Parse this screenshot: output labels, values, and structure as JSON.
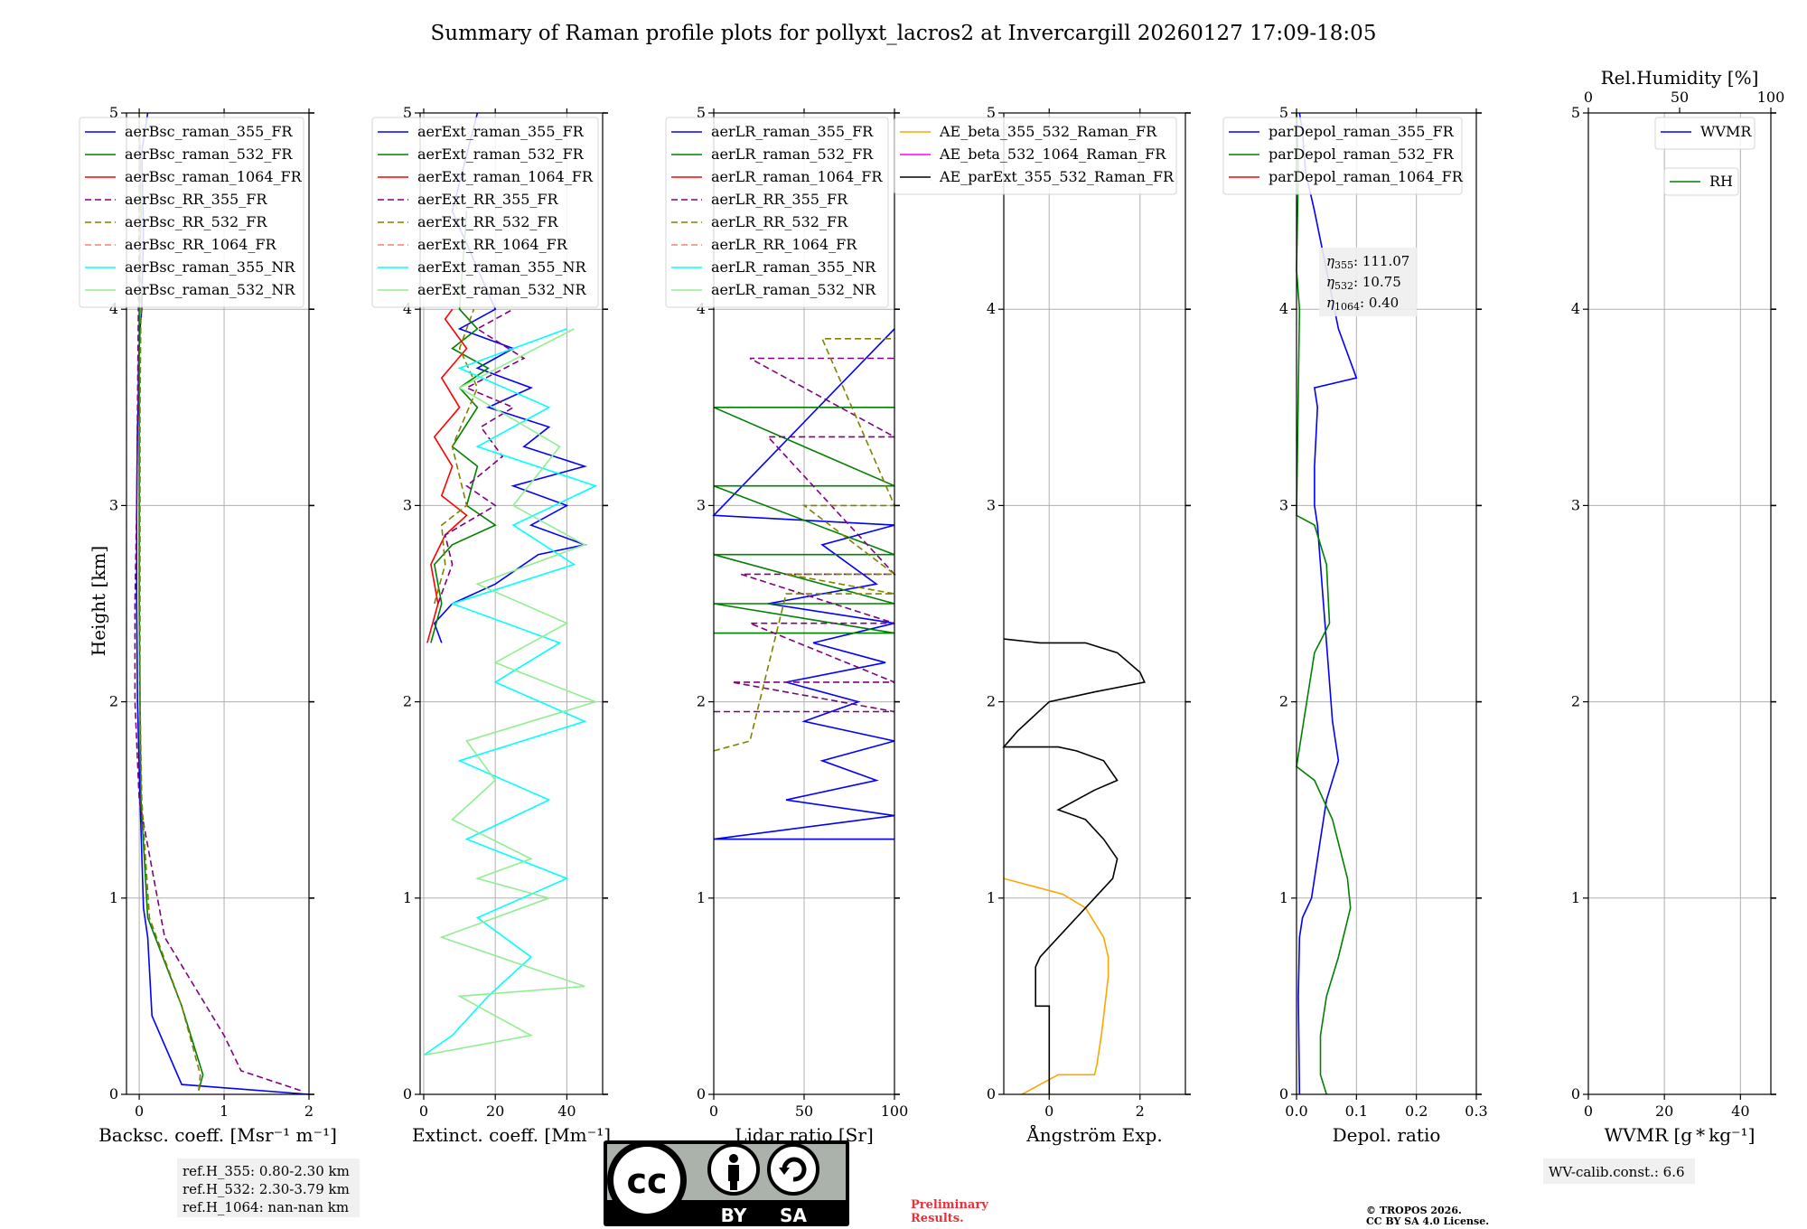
{
  "title": "Summary of Raman profile plots for pollyxt_lacros2 at Invercargill 20260127 17:09-18:05",
  "y_axis_label": "Height [km]",
  "colors": {
    "blue": "#0000ff",
    "green": "#008000",
    "red": "#ff0000",
    "purple": "#800080",
    "olive": "#808000",
    "salmon": "#fa8072",
    "cyan": "#00ffff",
    "lightgreen": "#90ee90",
    "orange": "#ffa500",
    "magenta": "#ff00ff",
    "black": "#000000",
    "grid": "#b0b0b0"
  },
  "chart_data": [
    {
      "type": "line",
      "id": "bsc",
      "xlabel": "Backsc. coeff. [Msr⁻¹ m⁻¹]",
      "xlim": [
        -0.15,
        2.0
      ],
      "ylim": [
        0,
        5
      ],
      "xticks": [
        0,
        1,
        2
      ],
      "xtick_labels": [
        "0",
        "1",
        "2"
      ],
      "yticks": [
        0,
        1,
        2,
        3,
        4,
        5
      ],
      "legend": [
        "aerBsc_raman_355_FR",
        "aerBsc_raman_532_FR",
        "aerBsc_raman_1064_FR",
        "aerBsc_RR_355_FR",
        "aerBsc_RR_532_FR",
        "aerBsc_RR_1064_FR",
        "aerBsc_raman_355_NR",
        "aerBsc_raman_532_NR"
      ],
      "series": [
        {
          "name": "aerBsc_raman_355_FR",
          "color": "blue",
          "style": "solid",
          "x": [
            2.0,
            0.5,
            0.15,
            0.1,
            0.05,
            0.01,
            -0.02,
            -0.03,
            -0.03,
            -0.02,
            -0.01,
            -0.01,
            0.0,
            0.01,
            0.03,
            0.05,
            0.03,
            0.1
          ],
          "y": [
            0.0,
            0.05,
            0.4,
            0.8,
            0.95,
            1.5,
            2.0,
            2.5,
            3.0,
            3.4,
            3.55,
            3.7,
            3.8,
            3.9,
            4.0,
            4.4,
            4.8,
            5.0
          ]
        },
        {
          "name": "aerBsc_raman_532_FR",
          "color": "green",
          "style": "solid",
          "x": [
            0.7,
            0.75,
            0.5,
            0.1,
            0.02,
            0.01,
            0.0,
            0.0,
            0.0,
            0.0,
            0.02,
            0.0
          ],
          "y": [
            0.02,
            0.1,
            0.45,
            0.9,
            1.5,
            2.0,
            2.5,
            3.0,
            3.5,
            4.0,
            4.5,
            5.0
          ]
        },
        {
          "name": "aerBsc_RR_355_FR",
          "color": "purple",
          "style": "dashed",
          "x": [
            1.9,
            1.2,
            1.0,
            0.3,
            0.0,
            -0.05,
            -0.05,
            -0.03,
            -0.02,
            -0.01,
            0.0,
            0.0
          ],
          "y": [
            0.02,
            0.12,
            0.3,
            0.8,
            1.5,
            2.0,
            2.5,
            3.0,
            3.5,
            4.0,
            4.5,
            5.0
          ]
        },
        {
          "name": "aerBsc_RR_532_FR",
          "color": "olive",
          "style": "dashed",
          "x": [
            0.7,
            0.72,
            0.5,
            0.12,
            0.03,
            0.01,
            0.01,
            0.01,
            0.01,
            0.02,
            0.0
          ],
          "y": [
            0.02,
            0.1,
            0.45,
            0.9,
            1.5,
            2.0,
            2.5,
            3.0,
            3.5,
            4.0,
            5.0
          ]
        }
      ]
    },
    {
      "type": "line",
      "id": "ext",
      "xlabel": "Extinct. coeff. [Mm⁻¹]",
      "xlim": [
        -1,
        50
      ],
      "ylim": [
        0,
        5
      ],
      "xticks": [
        0,
        20,
        40
      ],
      "xtick_labels": [
        "0",
        "20",
        "40"
      ],
      "yticks": [
        0,
        1,
        2,
        3,
        4,
        5
      ],
      "legend": [
        "aerExt_raman_355_FR",
        "aerExt_raman_532_FR",
        "aerExt_raman_1064_FR",
        "aerExt_RR_355_FR",
        "aerExt_RR_532_FR",
        "aerExt_RR_1064_FR",
        "aerExt_raman_355_NR",
        "aerExt_raman_532_NR"
      ],
      "series": [
        {
          "name": "aerExt_raman_355_FR",
          "color": "blue",
          "style": "solid",
          "x": [
            5,
            3,
            8,
            20,
            32,
            45,
            30,
            40,
            25,
            45,
            28,
            35,
            18,
            30,
            15,
            25,
            10,
            20,
            8,
            15
          ],
          "y": [
            2.3,
            2.4,
            2.5,
            2.6,
            2.75,
            2.8,
            2.9,
            3.0,
            3.1,
            3.2,
            3.3,
            3.4,
            3.5,
            3.6,
            3.7,
            3.8,
            3.9,
            4.0,
            4.5,
            5.0
          ]
        },
        {
          "name": "aerExt_raman_532_FR",
          "color": "green",
          "style": "solid",
          "x": [
            2,
            5,
            3,
            8,
            20,
            12,
            15,
            8,
            15,
            10,
            18,
            8,
            15,
            10,
            12
          ],
          "y": [
            2.3,
            2.5,
            2.7,
            2.8,
            2.9,
            3.0,
            3.2,
            3.3,
            3.5,
            3.6,
            3.7,
            3.8,
            3.9,
            4.0,
            4.5
          ]
        },
        {
          "name": "aerExt_raman_1064_FR",
          "color": "red",
          "style": "solid",
          "x": [
            1,
            4,
            2,
            6,
            12,
            5,
            8,
            3,
            10,
            5,
            12,
            6,
            8
          ],
          "y": [
            2.3,
            2.5,
            2.7,
            2.85,
            2.95,
            3.05,
            3.2,
            3.35,
            3.5,
            3.65,
            3.8,
            3.95,
            4.0
          ]
        },
        {
          "name": "aerExt_RR_355_FR",
          "color": "purple",
          "style": "dashed",
          "x": [
            4,
            8,
            6,
            20,
            12,
            22,
            16,
            25,
            12,
            28,
            15,
            25
          ],
          "y": [
            2.5,
            2.7,
            2.85,
            3.0,
            3.1,
            3.25,
            3.4,
            3.5,
            3.6,
            3.75,
            3.9,
            4.0
          ]
        },
        {
          "name": "aerExt_RR_532_FR",
          "color": "olive",
          "style": "dashed",
          "x": [
            3,
            6,
            5,
            12,
            8,
            15,
            10,
            14
          ],
          "y": [
            2.5,
            2.7,
            2.9,
            3.0,
            3.3,
            3.6,
            3.8,
            4.0
          ]
        },
        {
          "name": "aerExt_raman_355_NR",
          "color": "cyan",
          "style": "solid",
          "x": [
            0,
            8,
            18,
            30,
            15,
            40,
            12,
            35,
            10,
            45,
            20,
            38,
            8,
            42,
            25,
            48,
            15,
            35,
            10,
            40
          ],
          "y": [
            0.2,
            0.3,
            0.5,
            0.7,
            0.9,
            1.1,
            1.3,
            1.5,
            1.7,
            1.9,
            2.1,
            2.3,
            2.5,
            2.7,
            2.9,
            3.1,
            3.3,
            3.5,
            3.7,
            3.9
          ]
        },
        {
          "name": "aerExt_raman_532_NR",
          "color": "lightgreen",
          "style": "solid",
          "x": [
            0,
            30,
            10,
            45,
            5,
            35,
            15,
            30,
            8,
            20,
            12,
            48,
            20,
            40,
            15,
            45,
            25,
            38,
            10,
            42
          ],
          "y": [
            0.2,
            0.3,
            0.5,
            0.55,
            0.8,
            1.0,
            1.1,
            1.2,
            1.4,
            1.6,
            1.8,
            2.0,
            2.2,
            2.4,
            2.6,
            2.8,
            3.0,
            3.3,
            3.6,
            3.9
          ]
        }
      ]
    },
    {
      "type": "line",
      "id": "lr",
      "xlabel": "Lidar ratio [Sr]",
      "xlim": [
        0,
        100
      ],
      "ylim": [
        0,
        5
      ],
      "xticks": [
        0,
        50,
        100
      ],
      "xtick_labels": [
        "0",
        "50",
        "100"
      ],
      "yticks": [
        0,
        1,
        2,
        3,
        4,
        5
      ],
      "legend": [
        "aerLR_raman_355_FR",
        "aerLR_raman_532_FR",
        "aerLR_raman_1064_FR",
        "aerLR_RR_355_FR",
        "aerLR_RR_532_FR",
        "aerLR_RR_1064_FR",
        "aerLR_raman_355_NR",
        "aerLR_raman_532_NR"
      ],
      "series": [
        {
          "name": "aerLR_raman_355_FR",
          "color": "blue",
          "style": "solid",
          "x": [
            100,
            0,
            100,
            40,
            90,
            60,
            100,
            50,
            80,
            40,
            95,
            55,
            100,
            30,
            90,
            60,
            100,
            0,
            100
          ],
          "y": [
            1.3,
            1.3,
            1.42,
            1.5,
            1.6,
            1.7,
            1.8,
            1.9,
            2.0,
            2.1,
            2.2,
            2.3,
            2.4,
            2.5,
            2.6,
            2.8,
            2.9,
            2.95,
            3.9
          ]
        },
        {
          "name": "aerLR_raman_532_FR",
          "color": "green",
          "style": "solid",
          "x": [
            0,
            100,
            0,
            100,
            0,
            100,
            0,
            100,
            0,
            100
          ],
          "y": [
            2.35,
            2.35,
            2.5,
            2.5,
            2.75,
            2.75,
            3.1,
            3.1,
            3.5,
            3.5
          ]
        },
        {
          "name": "aerLR_RR_355_FR",
          "color": "purple",
          "style": "dashed",
          "x": [
            0,
            100,
            10,
            100,
            20,
            100,
            15,
            100,
            30,
            100,
            20,
            100
          ],
          "y": [
            1.95,
            1.95,
            2.1,
            2.1,
            2.4,
            2.4,
            2.65,
            2.65,
            3.35,
            3.35,
            3.75,
            3.75
          ]
        },
        {
          "name": "aerLR_RR_532_FR",
          "color": "olive",
          "style": "dashed",
          "x": [
            0,
            20,
            40,
            100,
            40,
            100,
            50,
            100,
            60,
            100
          ],
          "y": [
            1.75,
            1.8,
            2.55,
            2.55,
            2.65,
            2.65,
            3.0,
            3.0,
            3.85,
            3.85
          ]
        }
      ]
    },
    {
      "type": "line",
      "id": "ae",
      "xlabel": "Ångström Exp.",
      "xlim": [
        -1,
        3
      ],
      "ylim": [
        0,
        5
      ],
      "xticks": [
        0,
        2
      ],
      "xtick_labels": [
        "0",
        "2"
      ],
      "yticks": [
        0,
        1,
        2,
        3,
        4,
        5
      ],
      "legend": [
        "AE_beta_355_532_Raman_FR",
        "AE_beta_532_1064_Raman_FR",
        "AE_parExt_355_532_Raman_FR"
      ],
      "series": [
        {
          "name": "AE_beta_355_532_Raman_FR",
          "color": "orange",
          "style": "solid",
          "x": [
            -0.6,
            -0.2,
            0.2,
            1.0,
            1.05,
            1.15,
            1.25,
            1.3,
            1.3,
            1.2,
            0.8,
            0.3,
            -1.0
          ],
          "y": [
            0.0,
            0.05,
            0.1,
            0.1,
            0.15,
            0.3,
            0.5,
            0.6,
            0.7,
            0.8,
            0.95,
            1.02,
            1.1
          ]
        },
        {
          "name": "AE_parExt_355_532_Raman_FR",
          "color": "black",
          "style": "solid",
          "x": [
            0.0,
            0.0,
            -0.3,
            -0.3,
            -0.2,
            0.2,
            0.6,
            1.0,
            1.4,
            1.5,
            1.2,
            0.8,
            0.2,
            1.0,
            1.5,
            1.2,
            0.6,
            0.2,
            -1.0,
            -0.7,
            0.0,
            1.0,
            2.1,
            2.0,
            1.5,
            0.8,
            -0.2,
            -1.0
          ],
          "y": [
            0.0,
            0.45,
            0.45,
            0.65,
            0.7,
            0.8,
            0.9,
            1.0,
            1.1,
            1.2,
            1.3,
            1.4,
            1.45,
            1.55,
            1.6,
            1.7,
            1.75,
            1.77,
            1.77,
            1.85,
            2.0,
            2.05,
            2.1,
            2.15,
            2.25,
            2.3,
            2.3,
            2.32
          ]
        },
        {
          "name": "AE_beta_532_1064_Raman_FR",
          "color": "magenta",
          "style": "solid",
          "x": [],
          "y": []
        }
      ]
    },
    {
      "type": "line",
      "id": "depol",
      "xlabel": "Depol. ratio",
      "xlim": [
        0,
        0.3
      ],
      "ylim": [
        0,
        5
      ],
      "xticks": [
        0.0,
        0.1,
        0.2,
        0.3
      ],
      "xtick_labels": [
        "0.0",
        "0.1",
        "0.2",
        "0.3"
      ],
      "yticks": [
        0,
        1,
        2,
        3,
        4,
        5
      ],
      "legend": [
        "parDepol_raman_355_FR",
        "parDepol_raman_532_FR",
        "parDepol_raman_1064_FR"
      ],
      "series": [
        {
          "name": "parDepol_raman_355_FR",
          "color": "blue",
          "style": "solid",
          "x": [
            0.005,
            0.003,
            0.005,
            0.01,
            0.025,
            0.035,
            0.04,
            0.05,
            0.07,
            0.06,
            0.055,
            0.05,
            0.045,
            0.04,
            0.035,
            0.03,
            0.03,
            0.035,
            0.03,
            0.1,
            0.07,
            0.05,
            0.03,
            0.015,
            0.01,
            0.005
          ],
          "y": [
            0.0,
            0.5,
            0.8,
            0.9,
            1.0,
            1.2,
            1.3,
            1.5,
            1.7,
            1.9,
            2.1,
            2.3,
            2.5,
            2.7,
            2.9,
            3.0,
            3.2,
            3.5,
            3.6,
            3.65,
            3.9,
            4.2,
            4.5,
            4.7,
            4.9,
            5.0
          ]
        },
        {
          "name": "parDepol_raman_532_FR",
          "color": "green",
          "style": "solid",
          "x": [
            0.05,
            0.04,
            0.04,
            0.05,
            0.07,
            0.09,
            0.085,
            0.06,
            0.03,
            0.0,
            0.03,
            0.055,
            0.05,
            0.03,
            0.0,
            0.005,
            0.0,
            0.003,
            0.0
          ],
          "y": [
            0.0,
            0.1,
            0.3,
            0.5,
            0.7,
            0.95,
            1.1,
            1.4,
            1.6,
            1.67,
            2.25,
            2.4,
            2.7,
            2.9,
            2.95,
            4.0,
            4.2,
            4.7,
            5.0
          ]
        },
        {
          "name": "parDepol_raman_1064_FR",
          "color": "red",
          "style": "solid",
          "x": [],
          "y": []
        }
      ]
    },
    {
      "type": "line",
      "id": "wv",
      "xlabel": "WVMR [g * kg⁻¹]",
      "xlim": [
        0,
        48
      ],
      "ylim": [
        0,
        5
      ],
      "xticks": [
        0,
        20,
        40
      ],
      "xtick_labels": [
        "0",
        "20",
        "40"
      ],
      "yticks": [
        0,
        1,
        2,
        3,
        4,
        5
      ],
      "top_xlabel": "Rel.Humidity [%]",
      "top_xlim": [
        0,
        100
      ],
      "top_xticks": [
        0,
        50,
        100
      ],
      "top_xtick_labels": [
        "0",
        "50",
        "100"
      ],
      "legend": [
        "WVMR"
      ],
      "legend2": [
        "RH"
      ],
      "series": []
    }
  ],
  "reference_heights": [
    "ref.H_355: 0.80-2.30 km",
    "ref.H_532: 2.30-3.79 km",
    "ref.H_1064: nan-nan km"
  ],
  "eta_box": {
    "eta355": "111.07",
    "eta532": "10.75",
    "eta1064": "0.40"
  },
  "wv_calib": "WV-calib.const.: 6.6",
  "preliminary": [
    "Preliminary",
    "Results."
  ],
  "copyright": [
    "© TROPOS 2026.",
    "CC BY SA 4.0 License."
  ],
  "cc_badge": {
    "by": "BY",
    "sa": "SA",
    "cc": "cc"
  }
}
